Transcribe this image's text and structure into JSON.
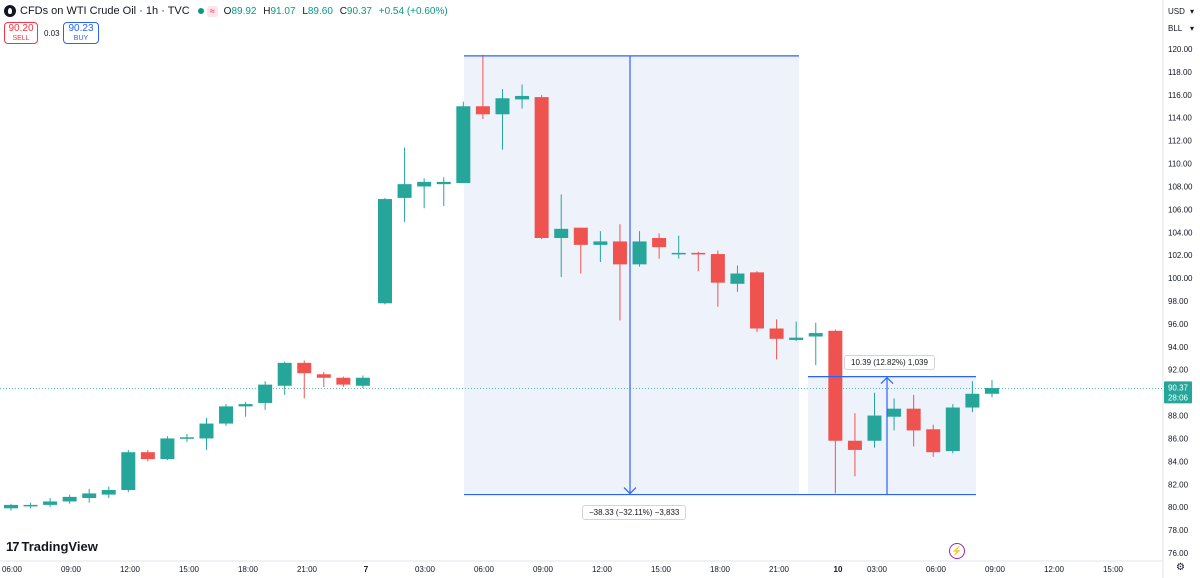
{
  "header": {
    "title": "CFDs on WTI Crude Oil · 1h · TVC",
    "status_icon": "wave-icon",
    "status_glyph": "≈",
    "ohlc": {
      "o_label": "O",
      "o_value": "89.92",
      "h_label": "H",
      "h_value": "91.07",
      "l_label": "L",
      "l_value": "89.60",
      "c_label": "C",
      "c_value": "90.37",
      "change": "+0.54 (+0.60%)"
    }
  },
  "trade": {
    "sell_price": "90.20",
    "sell_label": "SELL",
    "spread": "0.03",
    "buy_price": "90.23",
    "buy_label": "BUY"
  },
  "axis_controls": {
    "currency": "USD",
    "unit": "BLL"
  },
  "price_tag": {
    "price": "90.37",
    "countdown": "28:06"
  },
  "measure": {
    "down_label": "−38.33 (−32.11%) −3,833",
    "up_label": "10.39 (12.82%) 1,039"
  },
  "brand": {
    "name": "TradingView",
    "mark": "17"
  },
  "colors": {
    "up": "#26a69a",
    "down": "#ef5350",
    "measure": "#2962ff",
    "measure_fill": "#eef2fb",
    "accent": "#2962ff",
    "sell": "#f23645"
  },
  "chart_data": {
    "type": "candlestick",
    "ylim": [
      76,
      121
    ],
    "y_ticks": [
      "120.00",
      "118.00",
      "116.00",
      "114.00",
      "112.00",
      "110.00",
      "108.00",
      "106.00",
      "104.00",
      "102.00",
      "100.00",
      "98.00",
      "96.00",
      "94.00",
      "92.00",
      "90.00",
      "88.00",
      "86.00",
      "84.00",
      "82.00",
      "80.00",
      "78.00",
      "76.00"
    ],
    "x_ticks": [
      "06:00",
      "09:00",
      "12:00",
      "15:00",
      "18:00",
      "21:00",
      "7",
      "03:00",
      "06:00",
      "09:00",
      "12:00",
      "15:00",
      "18:00",
      "21:00",
      "10",
      "03:00",
      "06:00",
      "09:00",
      "12:00",
      "15:00"
    ],
    "candles": [
      {
        "o": 79.9,
        "h": 80.3,
        "l": 79.7,
        "c": 80.2
      },
      {
        "o": 80.1,
        "h": 80.4,
        "l": 79.9,
        "c": 80.2
      },
      {
        "o": 80.2,
        "h": 80.8,
        "l": 80.0,
        "c": 80.5
      },
      {
        "o": 80.5,
        "h": 81.1,
        "l": 80.3,
        "c": 80.9
      },
      {
        "o": 80.8,
        "h": 81.6,
        "l": 80.4,
        "c": 81.2
      },
      {
        "o": 81.1,
        "h": 81.8,
        "l": 80.8,
        "c": 81.5
      },
      {
        "o": 81.5,
        "h": 85.0,
        "l": 81.3,
        "c": 84.8
      },
      {
        "o": 84.8,
        "h": 85.0,
        "l": 84.0,
        "c": 84.2
      },
      {
        "o": 84.2,
        "h": 86.2,
        "l": 84.1,
        "c": 86.0
      },
      {
        "o": 86.0,
        "h": 86.4,
        "l": 85.7,
        "c": 86.1
      },
      {
        "o": 86.0,
        "h": 87.8,
        "l": 85.0,
        "c": 87.3
      },
      {
        "o": 87.3,
        "h": 89.0,
        "l": 87.1,
        "c": 88.8
      },
      {
        "o": 88.8,
        "h": 89.2,
        "l": 87.9,
        "c": 89.0
      },
      {
        "o": 89.1,
        "h": 91.0,
        "l": 88.5,
        "c": 90.7
      },
      {
        "o": 90.6,
        "h": 92.7,
        "l": 89.8,
        "c": 92.6
      },
      {
        "o": 92.6,
        "h": 92.8,
        "l": 89.5,
        "c": 91.7
      },
      {
        "o": 91.6,
        "h": 91.8,
        "l": 90.5,
        "c": 91.3
      },
      {
        "o": 91.3,
        "h": 91.4,
        "l": 90.5,
        "c": 90.7
      },
      {
        "o": 90.6,
        "h": 91.5,
        "l": 90.4,
        "c": 91.3
      },
      {
        "o": 97.8,
        "h": 107.0,
        "l": 97.7,
        "c": 106.9
      },
      {
        "o": 107.0,
        "h": 111.4,
        "l": 104.9,
        "c": 108.2
      },
      {
        "o": 108.0,
        "h": 108.7,
        "l": 106.1,
        "c": 108.4
      },
      {
        "o": 108.2,
        "h": 108.8,
        "l": 106.3,
        "c": 108.4
      },
      {
        "o": 108.3,
        "h": 115.4,
        "l": 108.3,
        "c": 115.0
      },
      {
        "o": 115.0,
        "h": 119.5,
        "l": 113.9,
        "c": 114.3
      },
      {
        "o": 114.3,
        "h": 116.5,
        "l": 111.2,
        "c": 115.7
      },
      {
        "o": 115.6,
        "h": 116.9,
        "l": 114.8,
        "c": 115.9
      },
      {
        "o": 115.8,
        "h": 116.0,
        "l": 103.4,
        "c": 103.5
      },
      {
        "o": 103.5,
        "h": 107.3,
        "l": 100.1,
        "c": 104.3
      },
      {
        "o": 104.4,
        "h": 104.4,
        "l": 100.4,
        "c": 102.9
      },
      {
        "o": 102.9,
        "h": 104.1,
        "l": 101.4,
        "c": 103.2
      },
      {
        "o": 103.2,
        "h": 104.7,
        "l": 96.3,
        "c": 101.2
      },
      {
        "o": 101.2,
        "h": 104.1,
        "l": 101.0,
        "c": 103.2
      },
      {
        "o": 103.5,
        "h": 103.9,
        "l": 101.7,
        "c": 102.7
      },
      {
        "o": 102.2,
        "h": 103.7,
        "l": 101.7,
        "c": 102.2
      },
      {
        "o": 102.2,
        "h": 102.3,
        "l": 100.6,
        "c": 102.1
      },
      {
        "o": 102.1,
        "h": 102.4,
        "l": 97.5,
        "c": 99.6
      },
      {
        "o": 99.5,
        "h": 101.1,
        "l": 98.8,
        "c": 100.4
      },
      {
        "o": 100.5,
        "h": 100.6,
        "l": 95.3,
        "c": 95.6
      },
      {
        "o": 95.6,
        "h": 96.4,
        "l": 92.9,
        "c": 94.7
      },
      {
        "o": 94.6,
        "h": 96.2,
        "l": 94.5,
        "c": 94.8
      },
      {
        "o": 94.9,
        "h": 96.1,
        "l": 92.4,
        "c": 95.2
      },
      {
        "o": 95.4,
        "h": 95.5,
        "l": 81.2,
        "c": 85.8
      },
      {
        "o": 85.8,
        "h": 88.2,
        "l": 82.7,
        "c": 85.0
      },
      {
        "o": 85.8,
        "h": 90.0,
        "l": 85.2,
        "c": 88.0
      },
      {
        "o": 87.9,
        "h": 89.5,
        "l": 86.7,
        "c": 88.6
      },
      {
        "o": 88.6,
        "h": 89.8,
        "l": 85.3,
        "c": 86.7
      },
      {
        "o": 86.8,
        "h": 87.2,
        "l": 84.4,
        "c": 84.8
      },
      {
        "o": 84.9,
        "h": 89.0,
        "l": 84.7,
        "c": 88.7
      },
      {
        "o": 88.7,
        "h": 91.0,
        "l": 88.3,
        "c": 89.9
      },
      {
        "o": 89.9,
        "h": 91.1,
        "l": 89.6,
        "c": 90.4
      }
    ]
  }
}
